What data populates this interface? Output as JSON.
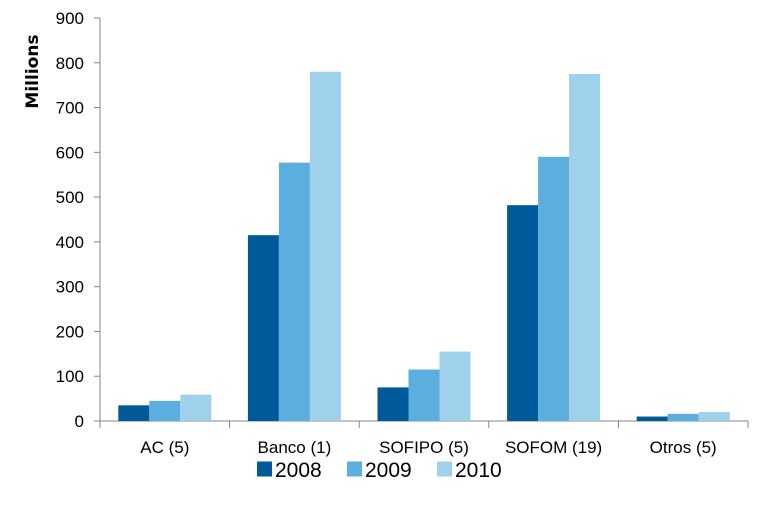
{
  "chart_data": {
    "type": "bar",
    "title": "",
    "xlabel": "",
    "ylabel": "Millions",
    "ylim": [
      0,
      900
    ],
    "yticks": [
      0,
      100,
      200,
      300,
      400,
      500,
      600,
      700,
      800,
      900
    ],
    "categories": [
      "AC (5)",
      "Banco (1)",
      "SOFIPO (5)",
      "SOFOM (19)",
      "Otros (5)"
    ],
    "series": [
      {
        "name": "2008",
        "color": "#005A9A",
        "values": [
          35,
          415,
          75,
          482,
          10
        ]
      },
      {
        "name": "2009",
        "color": "#5BAEDD",
        "values": [
          45,
          577,
          115,
          590,
          16
        ]
      },
      {
        "name": "2010",
        "color": "#9FD0EC",
        "values": [
          59,
          780,
          155,
          775,
          20
        ]
      }
    ],
    "grid": false,
    "legend_position": "bottom"
  }
}
